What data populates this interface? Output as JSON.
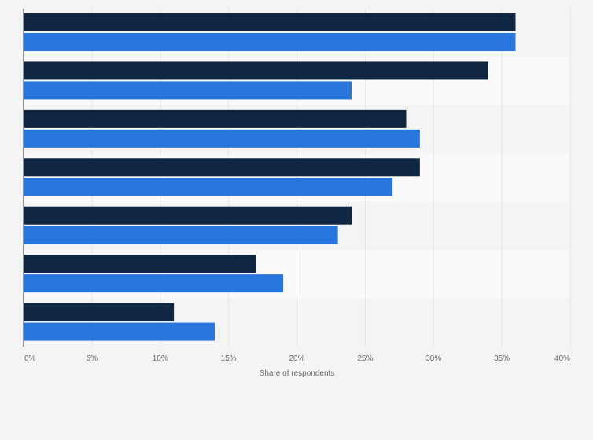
{
  "chart_data": {
    "type": "bar",
    "orientation": "horizontal",
    "categories": [
      "",
      "",
      "",
      "",
      "",
      "",
      ""
    ],
    "series": [
      {
        "color": "#0f2742",
        "values": [
          36,
          34,
          28,
          29,
          24,
          17,
          11
        ]
      },
      {
        "color": "#2876dd",
        "values": [
          36,
          24,
          29,
          27,
          23,
          19,
          14
        ]
      }
    ],
    "xlim": [
      0,
      40
    ],
    "xticks": [
      0,
      5,
      10,
      15,
      20,
      25,
      30,
      35,
      40
    ],
    "tick_suffix": "%",
    "tick_labels": [
      "0%",
      "5%",
      "10%",
      "15%",
      "20%",
      "25%",
      "30%",
      "35%",
      "40%"
    ],
    "xlabel": "Share of respondents",
    "grid": true
  }
}
